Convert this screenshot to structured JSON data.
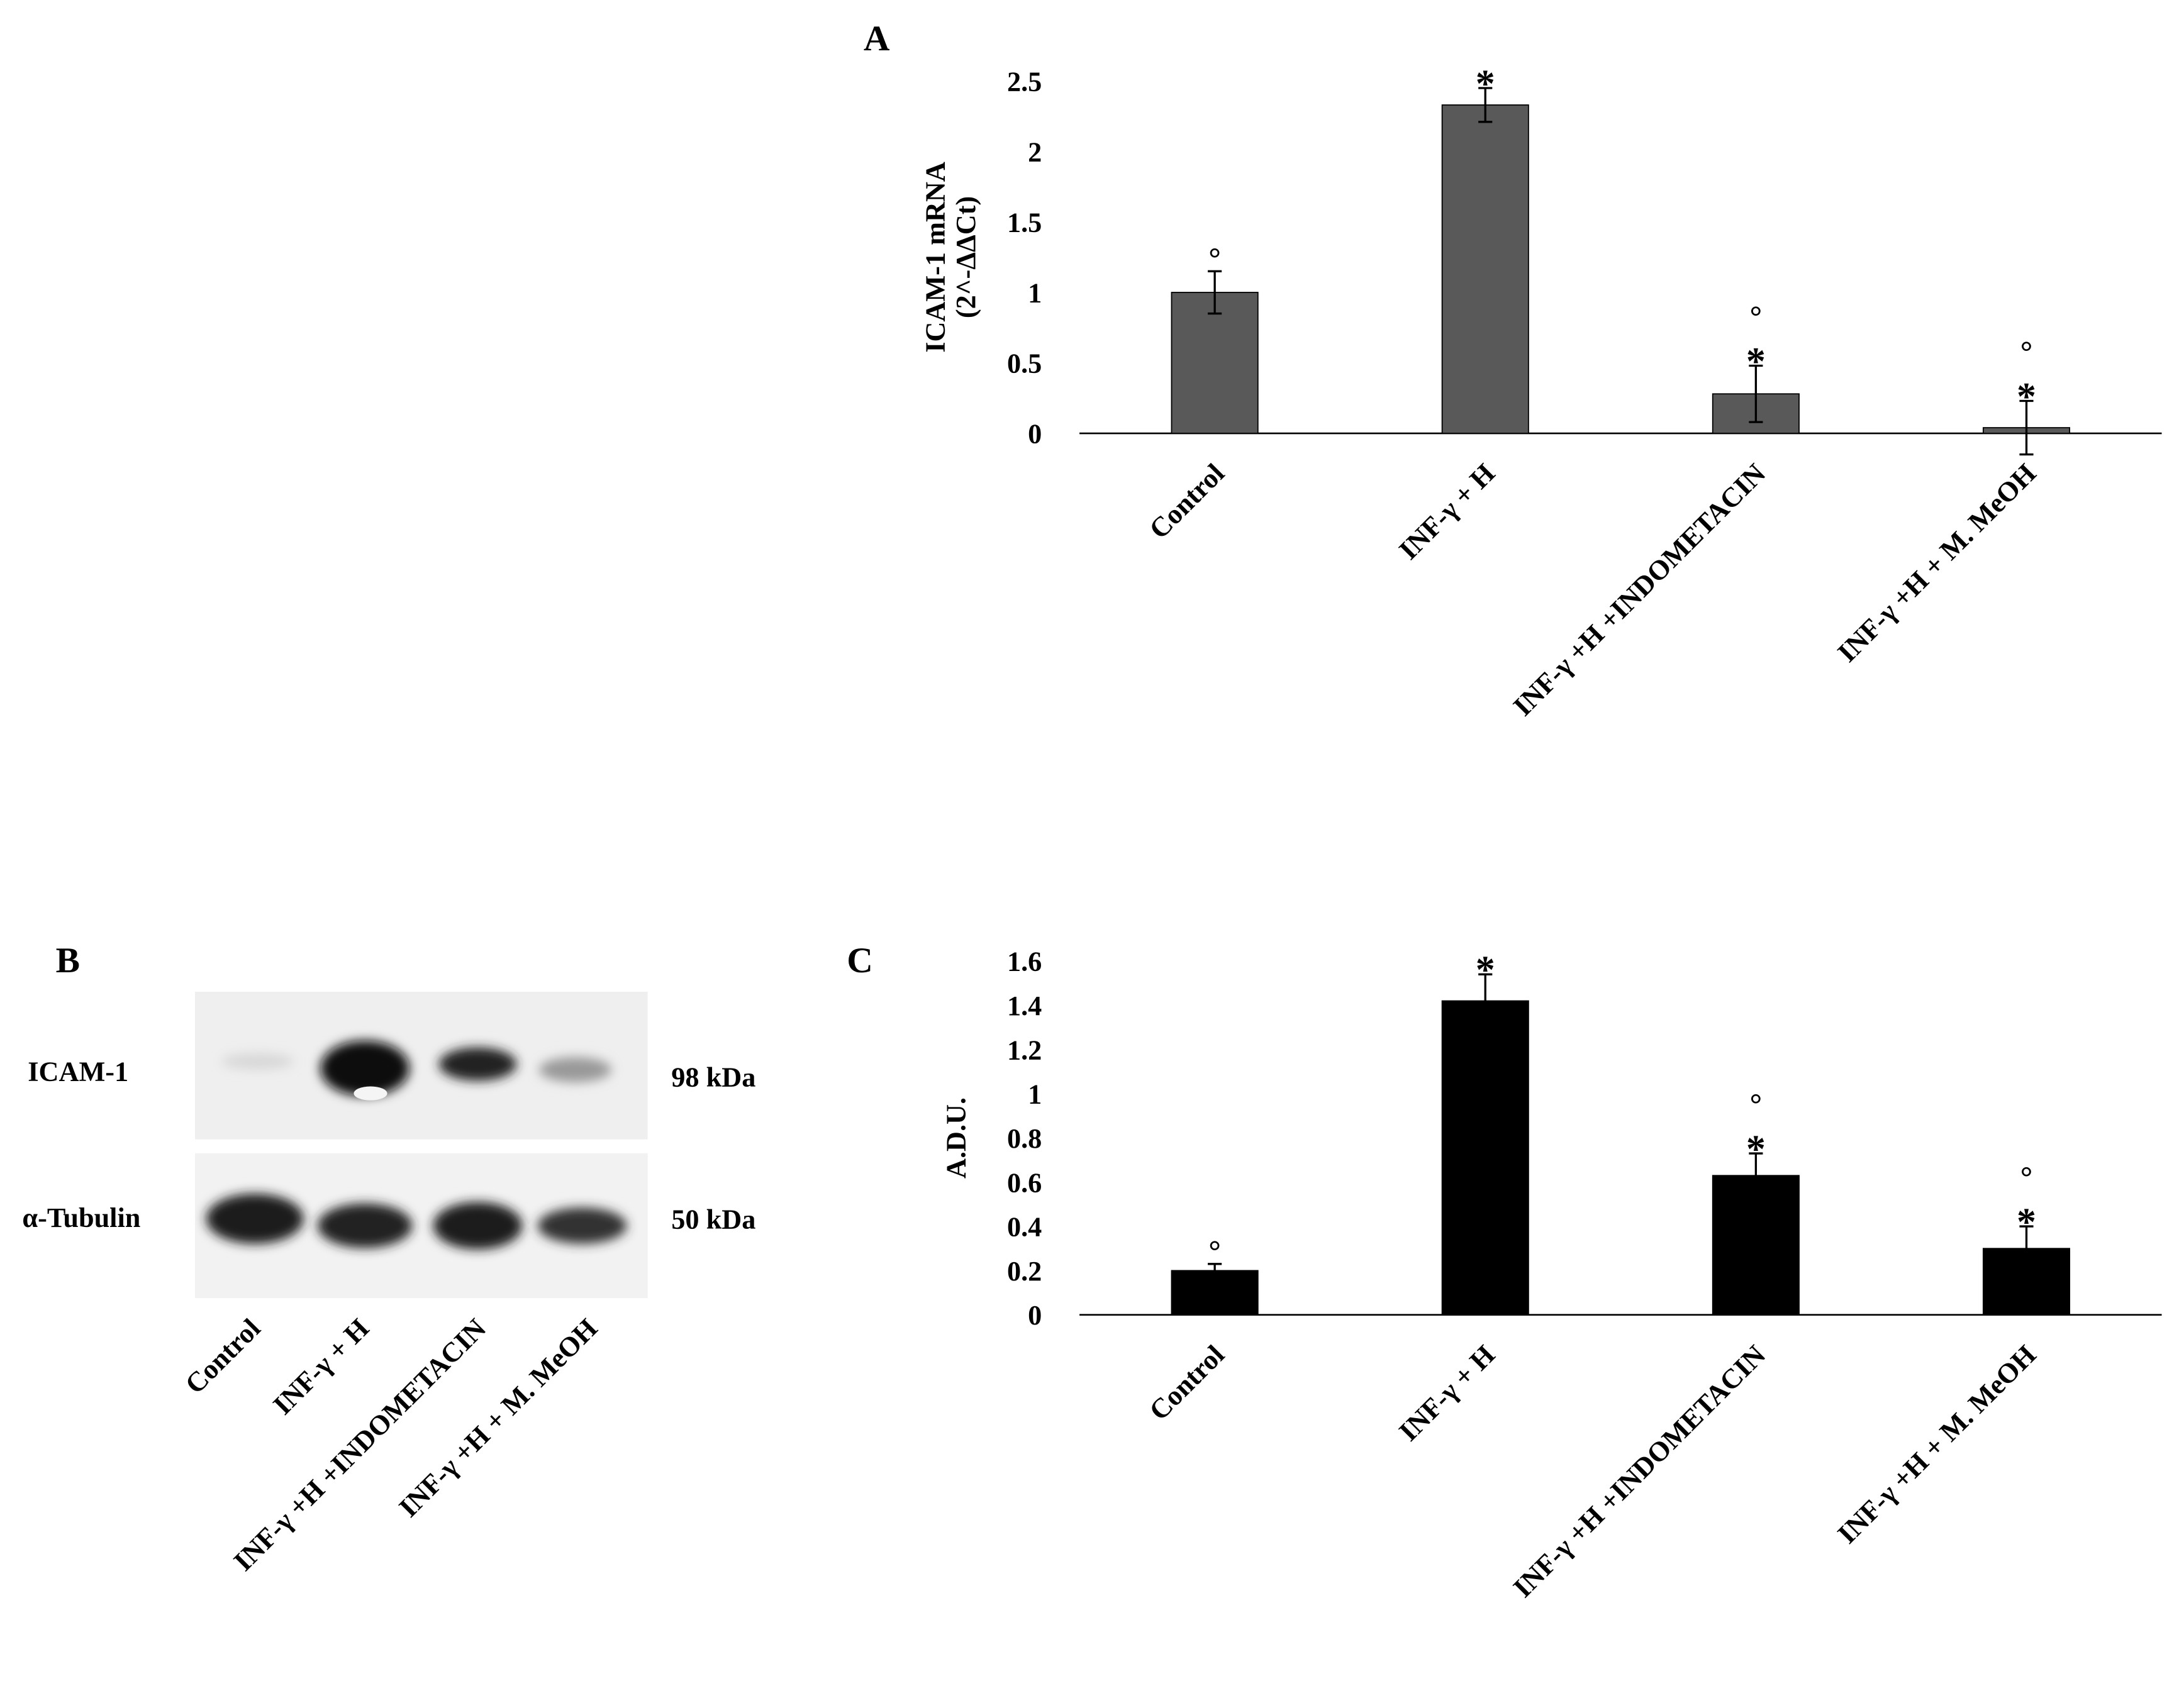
{
  "chart_data": [
    {
      "type": "bar",
      "panel": "A",
      "ylabel": [
        "ICAM-1  mRNA",
        "(2^-ΔΔCt)"
      ],
      "categories": [
        "Control",
        "INF-γ + H",
        "INF-γ +H +INDOMETACIN",
        "INF-γ +H + M. MeOH"
      ],
      "series": [
        {
          "color": "#595959",
          "values": [
            1.0,
            2.33,
            0.28,
            0.04
          ],
          "errors": [
            0.15,
            0.12,
            0.2,
            0.19
          ]
        }
      ],
      "annotations": [
        [
          "°"
        ],
        [
          "*"
        ],
        [
          "°",
          "*"
        ],
        [
          "°",
          "*"
        ]
      ],
      "ylim": [
        0,
        2.5
      ],
      "yticks": [
        0,
        0.5,
        1,
        1.5,
        2,
        2.5
      ]
    },
    {
      "type": "bar",
      "panel": "C",
      "ylabel": [
        "A.D.U."
      ],
      "categories": [
        "Control",
        "INF-γ + H",
        "INF-γ +H +INDOMETACIN",
        "INF-γ +H + M. MeOH"
      ],
      "series": [
        {
          "color": "#000000",
          "values": [
            0.2,
            1.42,
            0.63,
            0.3
          ],
          "errors": [
            0.03,
            0.12,
            0.1,
            0.1
          ]
        }
      ],
      "annotations": [
        [
          "°"
        ],
        [
          "*"
        ],
        [
          "°",
          "*"
        ],
        [
          "°",
          "*"
        ]
      ],
      "ylim": [
        0,
        1.6
      ],
      "yticks": [
        0,
        0.2,
        0.4,
        0.6,
        0.8,
        1,
        1.2,
        1.4,
        1.6
      ]
    }
  ],
  "blot": {
    "panel": "B",
    "rows": [
      {
        "label": "ICAM-1",
        "size": "98 kDa"
      },
      {
        "label": "α-Tubulin",
        "size": "50 kDa"
      }
    ],
    "lanes": [
      "Control",
      "INF-γ + H",
      "INF-γ +H +INDOMETACIN",
      "INF-γ +H + M. MeOH"
    ]
  }
}
